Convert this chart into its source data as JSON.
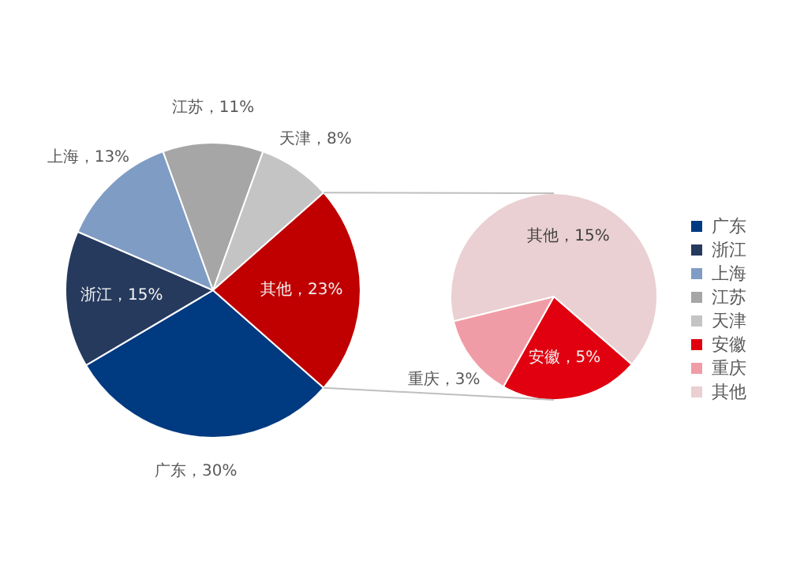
{
  "chart_data": [
    {
      "type": "pie",
      "categories": [
        "广东",
        "浙江",
        "上海",
        "江苏",
        "天津",
        null
      ],
      "values": [
        30,
        15,
        13,
        11,
        8,
        23
      ],
      "colors": [
        "#003a80",
        "#263a5e",
        "#7f9cc4",
        "#a6a6a6",
        "#c4c4c4",
        "#c00000"
      ],
      "value_labels": [
        "广东，30%",
        "浙江，15%",
        "上海，13%",
        "江苏，11%",
        "天津，8%",
        "其他，23%"
      ],
      "legend": "right"
    },
    {
      "type": "pie",
      "categories": [
        "安徽",
        "重庆",
        "其他"
      ],
      "values": [
        5,
        3,
        15
      ],
      "colors": [
        "#e00010",
        "#f09ca6",
        "#ead0d2"
      ],
      "value_labels": [
        "安徽，5%",
        "重庆，3%",
        "其他，15%"
      ],
      "legend": "right"
    }
  ]
}
